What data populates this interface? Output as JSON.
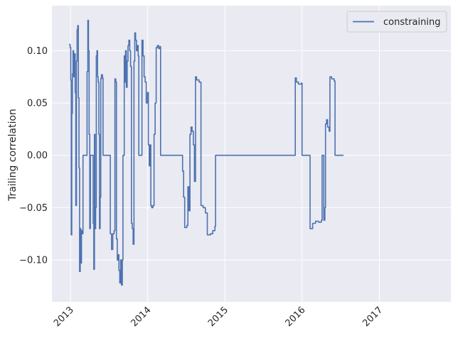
{
  "chart_data": {
    "type": "line",
    "title": "",
    "xlabel": "",
    "ylabel": "Trailing correlation",
    "x_tick_labels": [
      "2013",
      "2014",
      "2015",
      "2016",
      "2017"
    ],
    "y_tick_labels": [
      "−0.10",
      "−0.05",
      "0.00",
      "0.05",
      "0.10"
    ],
    "y_ticks": [
      -0.1,
      -0.05,
      0.0,
      0.05,
      0.1
    ],
    "xlim": [
      "2012-10-05",
      "2017-12-05"
    ],
    "ylim": [
      -0.14,
      0.143
    ],
    "grid": true,
    "legend_position": "top-right",
    "series": [
      {
        "name": "constraining",
        "color": "#4c72b0",
        "points": [
          [
            "2012-12-25",
            0.106
          ],
          [
            "2012-12-30",
            0.103
          ],
          [
            "2013-01-02",
            0.072
          ],
          [
            "2013-01-04",
            -0.076
          ],
          [
            "2013-01-07",
            0.04
          ],
          [
            "2013-01-10",
            0.078
          ],
          [
            "2013-01-13",
            0.1
          ],
          [
            "2013-01-16",
            0.075
          ],
          [
            "2013-01-19",
            0.097
          ],
          [
            "2013-01-23",
            0.06
          ],
          [
            "2013-01-26",
            -0.048
          ],
          [
            "2013-01-29",
            0.09
          ],
          [
            "2013-02-01",
            0.12
          ],
          [
            "2013-02-04",
            0.124
          ],
          [
            "2013-02-07",
            0.055
          ],
          [
            "2013-02-10",
            -0.012
          ],
          [
            "2013-02-13",
            -0.111
          ],
          [
            "2013-02-16",
            -0.07
          ],
          [
            "2013-02-19",
            -0.103
          ],
          [
            "2013-02-22",
            -0.072
          ],
          [
            "2013-02-26",
            -0.075
          ],
          [
            "2013-03-01",
            0.0
          ],
          [
            "2013-03-10",
            0.0
          ],
          [
            "2013-03-17",
            0.0
          ],
          [
            "2013-03-20",
            0.08
          ],
          [
            "2013-03-24",
            0.129
          ],
          [
            "2013-03-27",
            0.1
          ],
          [
            "2013-03-30",
            0.02
          ],
          [
            "2013-04-02",
            -0.07
          ],
          [
            "2013-04-05",
            0.0
          ],
          [
            "2013-04-10",
            0.0
          ],
          [
            "2013-04-15",
            0.0
          ],
          [
            "2013-04-18",
            -0.065
          ],
          [
            "2013-04-21",
            -0.109
          ],
          [
            "2013-04-24",
            0.02
          ],
          [
            "2013-04-27",
            -0.07
          ],
          [
            "2013-04-30",
            -0.05
          ],
          [
            "2013-05-03",
            0.095
          ],
          [
            "2013-05-06",
            0.1
          ],
          [
            "2013-05-09",
            0.075
          ],
          [
            "2013-05-12",
            0.07
          ],
          [
            "2013-05-15",
            0.02
          ],
          [
            "2013-05-18",
            -0.07
          ],
          [
            "2013-05-21",
            -0.04
          ],
          [
            "2013-05-24",
            0.073
          ],
          [
            "2013-05-27",
            0.077
          ],
          [
            "2013-06-01",
            0.074
          ],
          [
            "2013-06-04",
            0.0
          ],
          [
            "2013-06-20",
            0.0
          ],
          [
            "2013-07-05",
            0.0
          ],
          [
            "2013-07-08",
            -0.075
          ],
          [
            "2013-07-14",
            -0.09
          ],
          [
            "2013-07-20",
            -0.075
          ],
          [
            "2013-07-26",
            -0.072
          ],
          [
            "2013-07-30",
            0.073
          ],
          [
            "2013-08-03",
            0.07
          ],
          [
            "2013-08-06",
            -0.08
          ],
          [
            "2013-08-10",
            -0.1
          ],
          [
            "2013-08-14",
            -0.095
          ],
          [
            "2013-08-18",
            -0.11
          ],
          [
            "2013-08-22",
            -0.122
          ],
          [
            "2013-08-26",
            -0.1
          ],
          [
            "2013-08-30",
            -0.124
          ],
          [
            "2013-09-03",
            -0.1
          ],
          [
            "2013-09-06",
            0.0
          ],
          [
            "2013-09-09",
            0.0
          ],
          [
            "2013-09-12",
            0.095
          ],
          [
            "2013-09-15",
            0.07
          ],
          [
            "2013-09-18",
            0.1
          ],
          [
            "2013-09-22",
            0.065
          ],
          [
            "2013-09-26",
            0.09
          ],
          [
            "2013-09-30",
            0.105
          ],
          [
            "2013-10-04",
            0.11
          ],
          [
            "2013-10-08",
            0.1
          ],
          [
            "2013-10-12",
            0.085
          ],
          [
            "2013-10-16",
            -0.065
          ],
          [
            "2013-10-20",
            -0.07
          ],
          [
            "2013-10-24",
            -0.085
          ],
          [
            "2013-10-28",
            0.09
          ],
          [
            "2013-11-01",
            0.117
          ],
          [
            "2013-11-05",
            0.11
          ],
          [
            "2013-11-09",
            0.1
          ],
          [
            "2013-11-13",
            0.105
          ],
          [
            "2013-11-17",
            0.095
          ],
          [
            "2013-11-20",
            0.0
          ],
          [
            "2013-11-28",
            0.0
          ],
          [
            "2013-12-03",
            0.0
          ],
          [
            "2013-12-05",
            0.11
          ],
          [
            "2013-12-10",
            0.095
          ],
          [
            "2013-12-15",
            0.075
          ],
          [
            "2013-12-20",
            0.07
          ],
          [
            "2013-12-25",
            0.05
          ],
          [
            "2013-12-31",
            0.06
          ],
          [
            "2014-01-04",
            0.01
          ],
          [
            "2014-01-08",
            -0.01
          ],
          [
            "2014-01-12",
            0.01
          ],
          [
            "2014-01-16",
            -0.048
          ],
          [
            "2014-01-20",
            -0.05
          ],
          [
            "2014-01-26",
            -0.048
          ],
          [
            "2014-01-31",
            0.02
          ],
          [
            "2014-02-05",
            0.05
          ],
          [
            "2014-02-10",
            0.103
          ],
          [
            "2014-02-16",
            0.105
          ],
          [
            "2014-02-22",
            0.102
          ],
          [
            "2014-02-28",
            0.104
          ],
          [
            "2014-03-03",
            0.0
          ],
          [
            "2014-05-01",
            0.0
          ],
          [
            "2014-06-10",
            0.0
          ],
          [
            "2014-06-15",
            -0.015
          ],
          [
            "2014-06-20",
            -0.04
          ],
          [
            "2014-06-25",
            -0.069
          ],
          [
            "2014-07-05",
            -0.067
          ],
          [
            "2014-07-10",
            -0.03
          ],
          [
            "2014-07-15",
            -0.053
          ],
          [
            "2014-07-20",
            0.02
          ],
          [
            "2014-07-25",
            0.027
          ],
          [
            "2014-07-30",
            0.023
          ],
          [
            "2014-08-05",
            0.01
          ],
          [
            "2014-08-10",
            -0.025
          ],
          [
            "2014-08-15",
            0.075
          ],
          [
            "2014-08-20",
            0.072
          ],
          [
            "2014-09-01",
            0.07
          ],
          [
            "2014-09-10",
            -0.048
          ],
          [
            "2014-09-20",
            -0.05
          ],
          [
            "2014-10-01",
            -0.055
          ],
          [
            "2014-10-10",
            -0.076
          ],
          [
            "2014-10-25",
            -0.075
          ],
          [
            "2014-11-05",
            -0.072
          ],
          [
            "2014-11-15",
            -0.068
          ],
          [
            "2014-11-18",
            0.0
          ],
          [
            "2015-06-01",
            0.0
          ],
          [
            "2015-11-28",
            0.0
          ],
          [
            "2015-11-30",
            0.074
          ],
          [
            "2015-12-05",
            0.07
          ],
          [
            "2015-12-15",
            0.068
          ],
          [
            "2015-12-28",
            0.069
          ],
          [
            "2016-01-01",
            0.0
          ],
          [
            "2016-02-05",
            0.0
          ],
          [
            "2016-02-08",
            -0.07
          ],
          [
            "2016-02-20",
            -0.065
          ],
          [
            "2016-03-05",
            -0.063
          ],
          [
            "2016-03-20",
            -0.064
          ],
          [
            "2016-04-01",
            -0.062
          ],
          [
            "2016-04-05",
            0.0
          ],
          [
            "2016-04-10",
            0.0
          ],
          [
            "2016-04-13",
            -0.062
          ],
          [
            "2016-04-18",
            -0.05
          ],
          [
            "2016-04-21",
            0.03
          ],
          [
            "2016-04-26",
            0.034
          ],
          [
            "2016-05-01",
            0.027
          ],
          [
            "2016-05-08",
            0.023
          ],
          [
            "2016-05-12",
            0.075
          ],
          [
            "2016-05-20",
            0.073
          ],
          [
            "2016-06-01",
            0.071
          ],
          [
            "2016-06-05",
            0.0
          ],
          [
            "2016-07-15",
            0.0
          ]
        ]
      }
    ]
  }
}
